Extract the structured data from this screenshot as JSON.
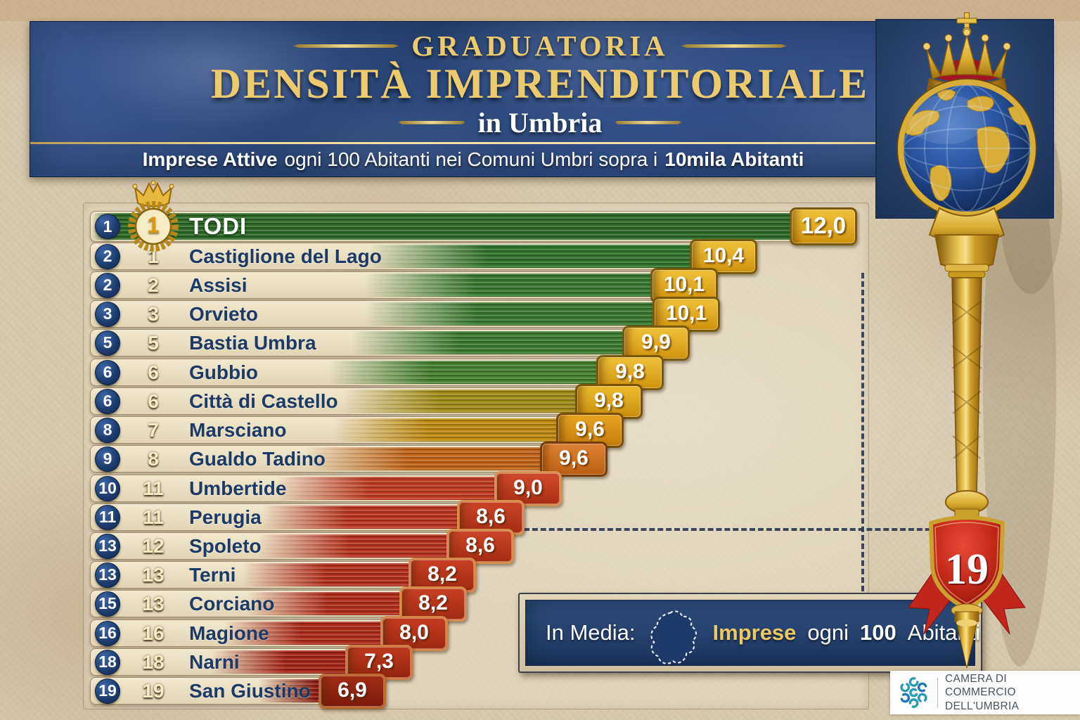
{
  "header": {
    "title_line1": "GRADUATORIA",
    "title_line2": "DENSITÀ IMPRENDITORIALE",
    "title_line3": "in Umbria",
    "subtitle_bold1": "Imprese Attive",
    "subtitle_mid": "ogni 100 Abitanti nei Comuni Umbri sopra i",
    "subtitle_bold2": "10mila Abitanti"
  },
  "chart_data": {
    "type": "bar",
    "orientation": "horizontal",
    "title": "Graduatoria Densità Imprenditoriale in Umbria",
    "subtitle": "Imprese Attive ogni 100 Abitanti nei Comuni Umbri sopra i 10mila Abitanti",
    "value_unit": "imprese attive ogni 100 abitanti",
    "categories": [
      "Todi",
      "Castiglione del Lago",
      "Assisi",
      "Orvieto",
      "Bastia Umbra",
      "Gubbio",
      "Città di Castello",
      "Marsciano",
      "Gualdo Tadino",
      "Umbertide",
      "Perugia",
      "Spoleto",
      "Terni",
      "Corciano",
      "Magione",
      "Narni",
      "San Giustino"
    ],
    "values": [
      12.0,
      10.4,
      10.1,
      10.1,
      9.9,
      9.8,
      9.8,
      9.6,
      9.6,
      9.0,
      8.6,
      8.6,
      8.2,
      8.2,
      8.0,
      7.3,
      6.9
    ],
    "rank_blue_circle": [
      1,
      2,
      2,
      3,
      5,
      6,
      6,
      8,
      9,
      10,
      11,
      13,
      13,
      15,
      16,
      18,
      19
    ],
    "rank_gold": [
      1,
      1,
      2,
      3,
      5,
      6,
      6,
      7,
      8,
      11,
      11,
      12,
      13,
      13,
      16,
      18,
      19
    ],
    "average_separator": {
      "position": "after Perugia (11)",
      "style": "dashed"
    },
    "color_scale": "green (high) through gold and orange to dark red (low)",
    "rows": [
      {
        "rank": "1",
        "rank2": "1",
        "city": "TODI",
        "value": "12,0",
        "num": 12.0,
        "color": "#2d6a26",
        "b1": "#f0c23a",
        "b2": "#d1930f",
        "bd": "#7a5a08",
        "end": 1210,
        "fa": 0,
        "fb": 3
      },
      {
        "rank": "2",
        "rank2": "1",
        "city": "Castiglione del Lago",
        "value": "10,4",
        "num": 10.4,
        "color": "#31752b",
        "b1": "#f0c23a",
        "b2": "#d1930f",
        "bd": "#7a5a08",
        "end": 1068,
        "fa": 42,
        "fb": 60
      },
      {
        "rank": "2",
        "rank2": "2",
        "city": "Assisi",
        "value": "10,1",
        "num": 10.1,
        "color": "#37792e",
        "b1": "#f0c23a",
        "b2": "#d1930f",
        "bd": "#7a5a08",
        "end": 1012,
        "fa": 44,
        "fb": 62
      },
      {
        "rank": "3",
        "rank2": "3",
        "city": "Orvieto",
        "value": "10,1",
        "num": 10.1,
        "color": "#37792e",
        "b1": "#f0c23a",
        "b2": "#d1930f",
        "bd": "#7a5a08",
        "end": 1015,
        "fa": 44,
        "fb": 62
      },
      {
        "rank": "5",
        "rank2": "5",
        "city": "Bastia Umbra",
        "value": "9,9",
        "num": 9.9,
        "color": "#3b7c2f",
        "b1": "#f0c23a",
        "b2": "#d1930f",
        "bd": "#7a5a08",
        "end": 972,
        "fa": 44,
        "fb": 62
      },
      {
        "rank": "6",
        "rank2": "6",
        "city": "Gubbio",
        "value": "9,8",
        "num": 9.8,
        "color": "#44812f",
        "b1": "#f0c23a",
        "b2": "#d1930f",
        "bd": "#7a5a08",
        "end": 935,
        "fa": 42,
        "fb": 60
      },
      {
        "rank": "6",
        "rank2": "6",
        "city": "Città di Castello",
        "value": "9,8",
        "num": 9.8,
        "color": "#a08c16",
        "b1": "#eebc2e",
        "b2": "#c98f0e",
        "bd": "#7a5206",
        "end": 905,
        "fa": 46,
        "fb": 64
      },
      {
        "rank": "8",
        "rank2": "7",
        "city": "Marsciano",
        "value": "9,6",
        "num": 9.6,
        "color": "#c08a10",
        "b1": "#e8a522",
        "b2": "#c37c0c",
        "bd": "#7a4e06",
        "end": 878,
        "fa": 46,
        "fb": 64
      },
      {
        "rank": "9",
        "rank2": "8",
        "city": "Gualdo Tadino",
        "value": "9,6",
        "num": 9.6,
        "color": "#c2661a",
        "b1": "#dd8232",
        "b2": "#bc5f12",
        "bd": "#7a3c06",
        "end": 855,
        "fa": 42,
        "fb": 62
      },
      {
        "rank": "10",
        "rank2": "11",
        "city": "Umbertide",
        "value": "9,0",
        "num": 9.0,
        "color": "#c03a20",
        "b1": "#d14a2c",
        "b2": "#a92e14",
        "bd": "#d99050",
        "end": 790,
        "fa": 40,
        "fb": 60
      },
      {
        "rank": "11",
        "rank2": "11",
        "city": "Perugia",
        "value": "8,6",
        "num": 8.6,
        "color": "#bb3520",
        "b1": "#cc4528",
        "b2": "#a52c13",
        "bd": "#d98e4c",
        "end": 737,
        "fa": 40,
        "fb": 60
      },
      {
        "rank": "13",
        "rank2": "12",
        "city": "Spoleto",
        "value": "8,6",
        "num": 8.6,
        "color": "#b8331e",
        "b1": "#cc4528",
        "b2": "#a52c13",
        "bd": "#d98e4c",
        "end": 722,
        "fa": 40,
        "fb": 62
      },
      {
        "rank": "13",
        "rank2": "13",
        "city": "Terni",
        "value": "8,2",
        "num": 8.2,
        "color": "#b5301c",
        "b1": "#c94024",
        "b2": "#a02a12",
        "bd": "#d9894a",
        "end": 668,
        "fa": 40,
        "fb": 62
      },
      {
        "rank": "15",
        "rank2": "13",
        "city": "Corciano",
        "value": "8,2",
        "num": 8.2,
        "color": "#b22e1b",
        "b1": "#c94024",
        "b2": "#a02a12",
        "bd": "#d9894a",
        "end": 655,
        "fa": 42,
        "fb": 64
      },
      {
        "rank": "16",
        "rank2": "16",
        "city": "Magione",
        "value": "8,0",
        "num": 8.0,
        "color": "#ae2b19",
        "b1": "#c63d22",
        "b2": "#9c2810",
        "bd": "#d5854a",
        "end": 628,
        "fa": 38,
        "fb": 60
      },
      {
        "rank": "18",
        "rank2": "18",
        "city": "Narni",
        "value": "7,3",
        "num": 7.3,
        "color": "#a42414",
        "b1": "#bf3a1e",
        "b2": "#94230e",
        "bd": "#cd7c42",
        "end": 578,
        "fa": 38,
        "fb": 62
      },
      {
        "rank": "19",
        "rank2": "19",
        "city": "San Giustino",
        "value": "6,9",
        "num": 6.9,
        "color": "#8a1d10",
        "b1": "#a32c16",
        "b2": "#7c1c0b",
        "bd": "#c06a30",
        "end": 540,
        "fa": 58,
        "fb": 78
      }
    ]
  },
  "in_media": {
    "label": "In Media:",
    "word1": "Imprese",
    "word2": "ogni",
    "word3": "100",
    "word4": "Abitanti"
  },
  "scepter": {
    "shield_number": "19"
  },
  "logo": {
    "line1": "CAMERA DI COMMERCIO",
    "line2": "DELL'UMBRIA"
  }
}
